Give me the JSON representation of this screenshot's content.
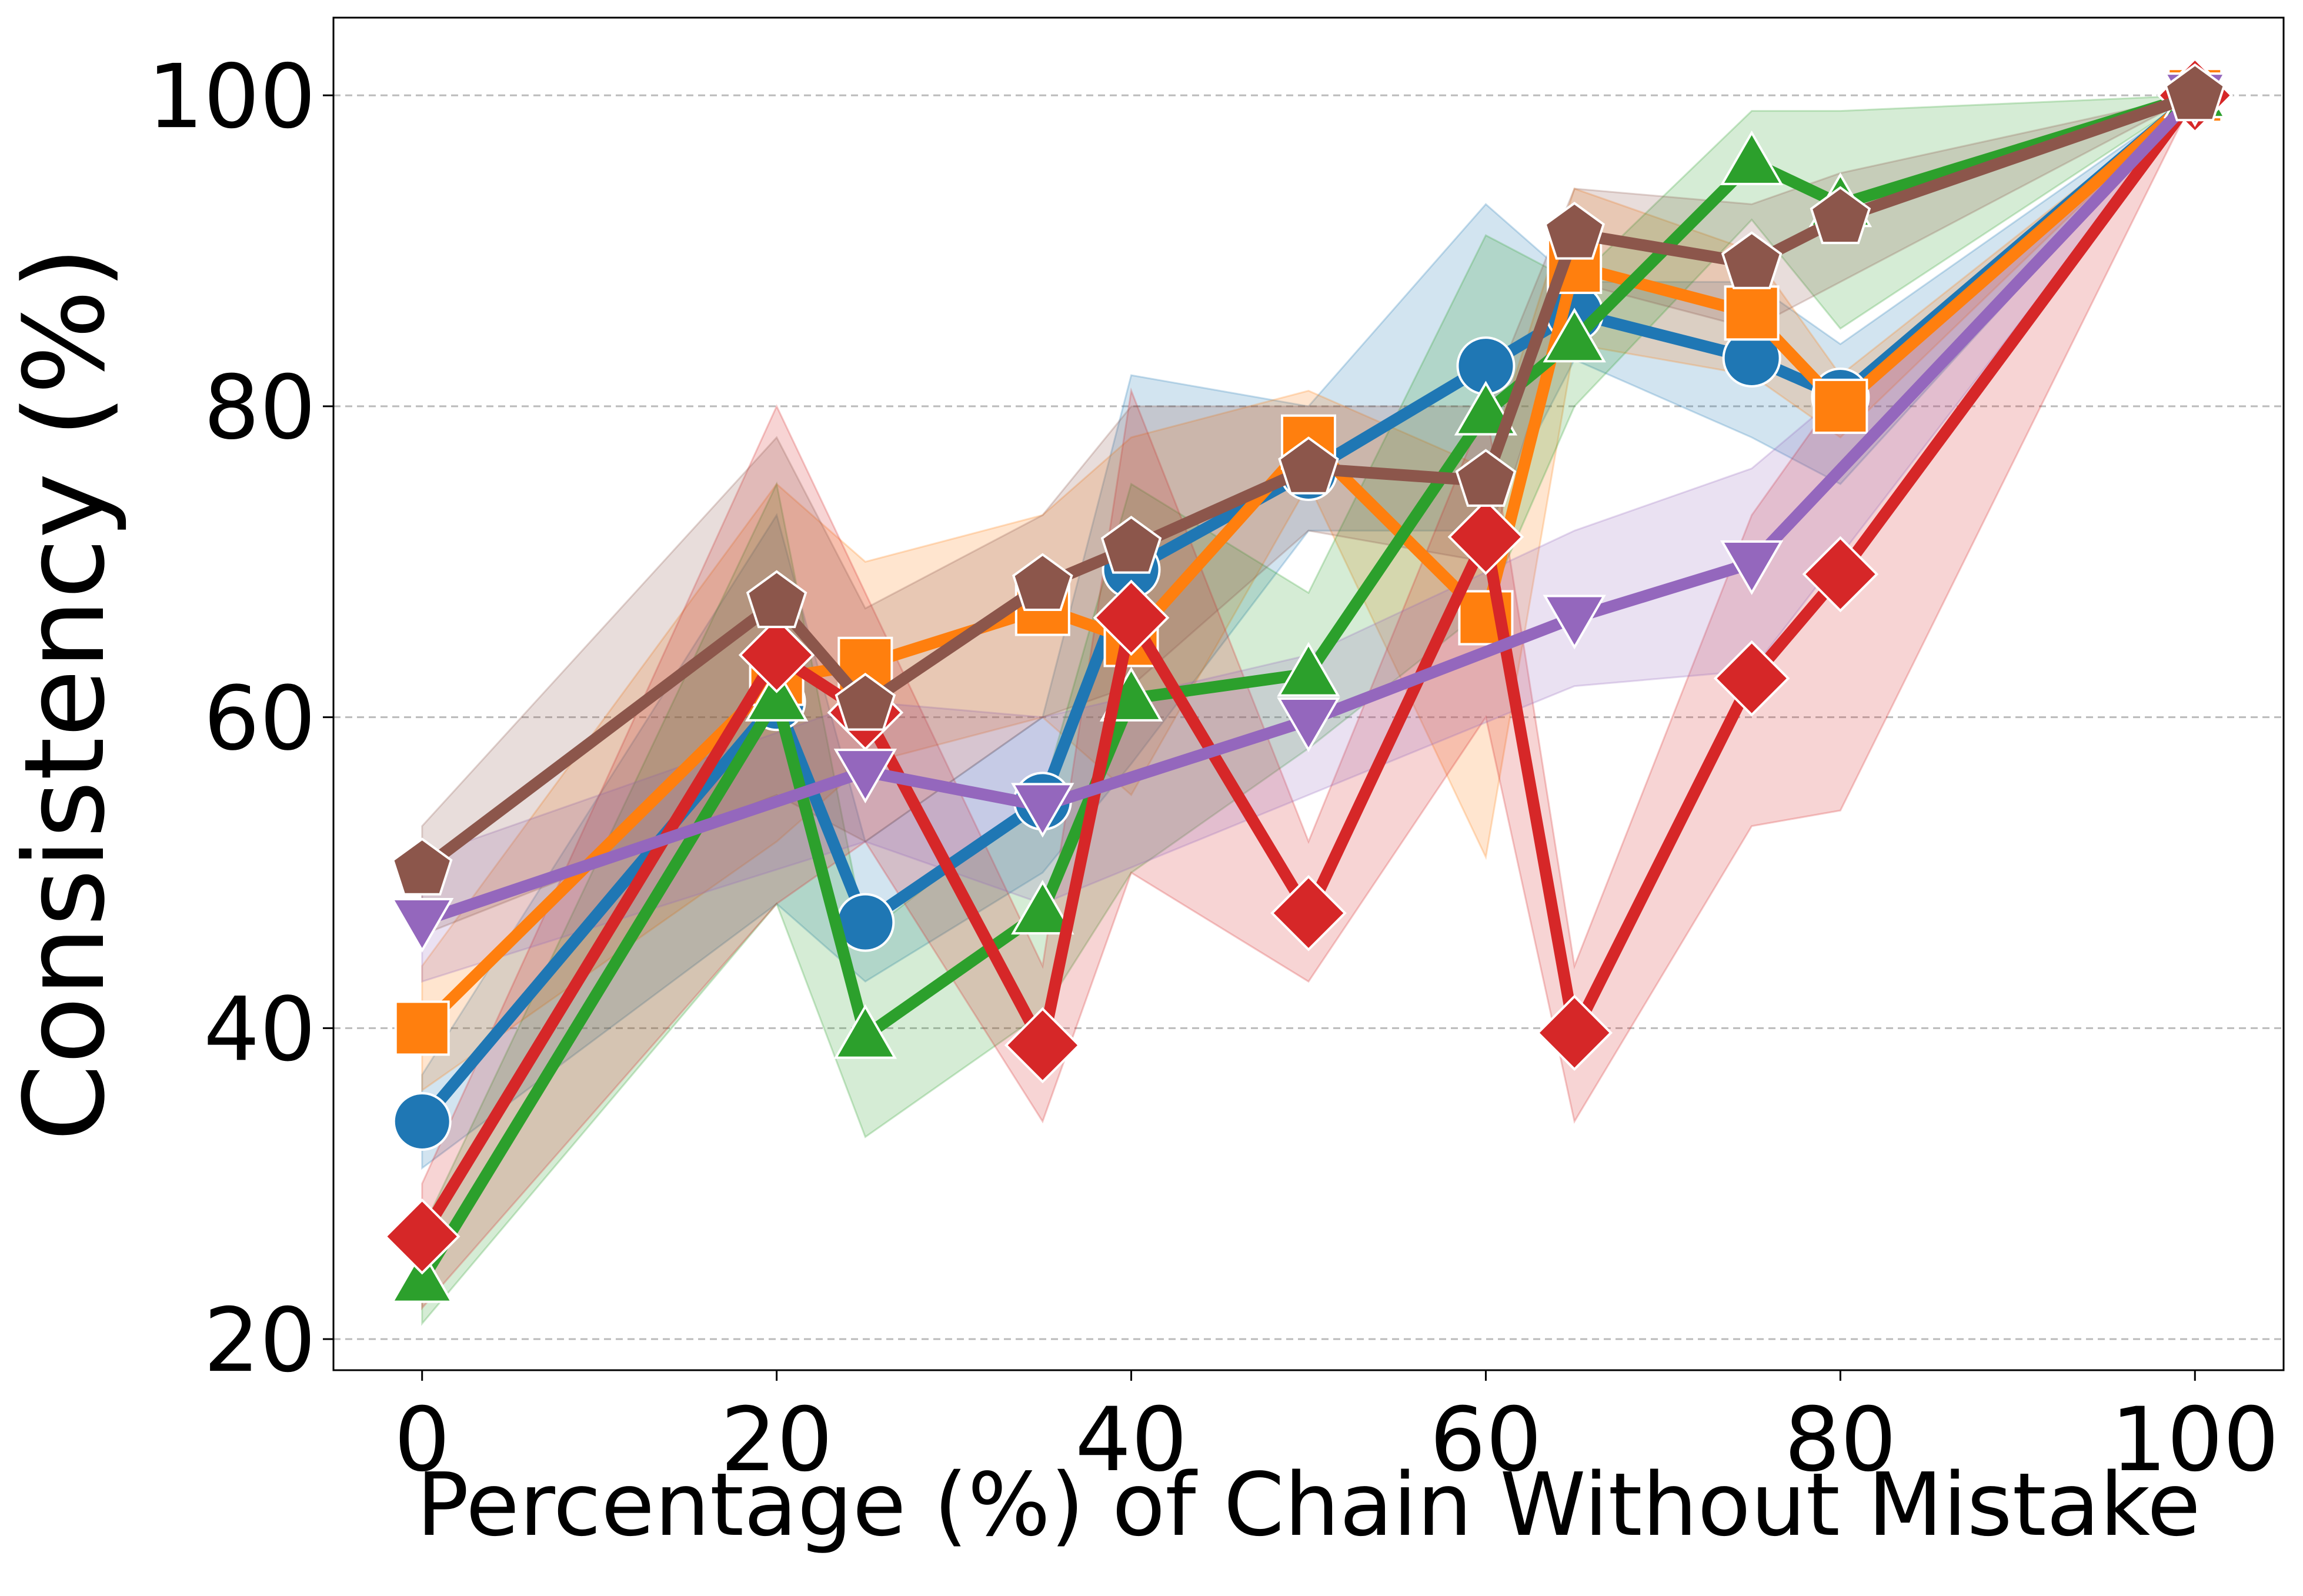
{
  "chart_data": {
    "type": "line",
    "xlabel": "Percentage (%) of Chain Without Mistake",
    "ylabel": "Consistency (%)",
    "xlim": [
      -5,
      105
    ],
    "xticks": [
      0,
      20,
      40,
      60,
      80,
      100
    ],
    "ylim": [
      18,
      105
    ],
    "yticks": [
      20,
      40,
      60,
      80,
      100
    ],
    "grid": "y",
    "series": [
      {
        "color": "#1f77b4",
        "marker": "circle",
        "x": [
          0,
          20,
          25,
          35,
          40,
          50,
          60,
          65,
          75,
          80,
          100
        ],
        "values": [
          34,
          61,
          46.8,
          54.6,
          69.5,
          75.8,
          82.6,
          86,
          83.1,
          80.6,
          100
        ],
        "lower": [
          31,
          48,
          43,
          50,
          57,
          72,
          72,
          83,
          78,
          75,
          100
        ],
        "upper": [
          37,
          73,
          52,
          60,
          82,
          80,
          93,
          88,
          88,
          84,
          100
        ]
      },
      {
        "color": "#ff7f0e",
        "marker": "square",
        "x": [
          0,
          20,
          25,
          35,
          40,
          50,
          60,
          65,
          75,
          80,
          100
        ],
        "values": [
          40,
          62.5,
          63.4,
          67,
          65,
          77.7,
          66.4,
          89,
          86,
          80,
          100
        ],
        "lower": [
          36,
          52,
          57,
          60,
          55,
          75,
          51,
          84,
          82,
          78,
          100
        ],
        "upper": [
          44,
          75,
          70,
          73,
          78,
          81,
          76,
          94,
          90,
          82,
          100
        ]
      },
      {
        "color": "#2ca02c",
        "marker": "triangle-up",
        "x": [
          0,
          20,
          25,
          35,
          40,
          50,
          60,
          65,
          75,
          80,
          100
        ],
        "values": [
          23.8,
          61.2,
          39.5,
          47.5,
          61.2,
          62.8,
          79.6,
          84.3,
          95.7,
          93,
          100
        ],
        "lower": [
          21,
          48,
          33,
          41,
          50,
          58,
          67,
          80,
          92,
          85,
          100
        ],
        "upper": [
          27,
          75,
          46,
          55,
          75,
          68,
          91,
          88,
          99,
          99,
          100
        ]
      },
      {
        "color": "#d62728",
        "marker": "diamond",
        "x": [
          0,
          20,
          25,
          35,
          40,
          50,
          60,
          65,
          75,
          80,
          100
        ],
        "values": [
          26.6,
          64,
          60.3,
          38.9,
          66.4,
          47.4,
          71.6,
          39.7,
          62.5,
          69.2,
          100
        ],
        "lower": [
          22,
          48,
          52,
          34,
          50,
          43,
          60,
          34,
          53,
          54,
          100
        ],
        "upper": [
          30,
          80,
          68,
          44,
          81,
          52,
          80,
          44,
          73,
          81,
          100
        ]
      },
      {
        "color": "#9467bd",
        "marker": "triangle-down",
        "x": [
          0,
          25,
          35,
          50,
          65,
          75,
          100
        ],
        "values": [
          46.9,
          56.5,
          54.3,
          59.8,
          66.4,
          69.9,
          100
        ],
        "lower": [
          43,
          52,
          48,
          55,
          62,
          63,
          100
        ],
        "upper": [
          51,
          61,
          60,
          64,
          72,
          76,
          100
        ]
      },
      {
        "color": "#8c564b",
        "marker": "pentagon",
        "x": [
          0,
          20,
          25,
          35,
          40,
          50,
          60,
          65,
          75,
          80,
          100
        ],
        "values": [
          50.2,
          67.4,
          60.8,
          68.5,
          70.9,
          76,
          75.2,
          91.1,
          89.2,
          92.1,
          100
        ],
        "lower": [
          46,
          55,
          52,
          60,
          62,
          72,
          70,
          88,
          85,
          88,
          100
        ],
        "upper": [
          53,
          78,
          67,
          73,
          80,
          80,
          80,
          94,
          93,
          95,
          100
        ]
      }
    ]
  }
}
